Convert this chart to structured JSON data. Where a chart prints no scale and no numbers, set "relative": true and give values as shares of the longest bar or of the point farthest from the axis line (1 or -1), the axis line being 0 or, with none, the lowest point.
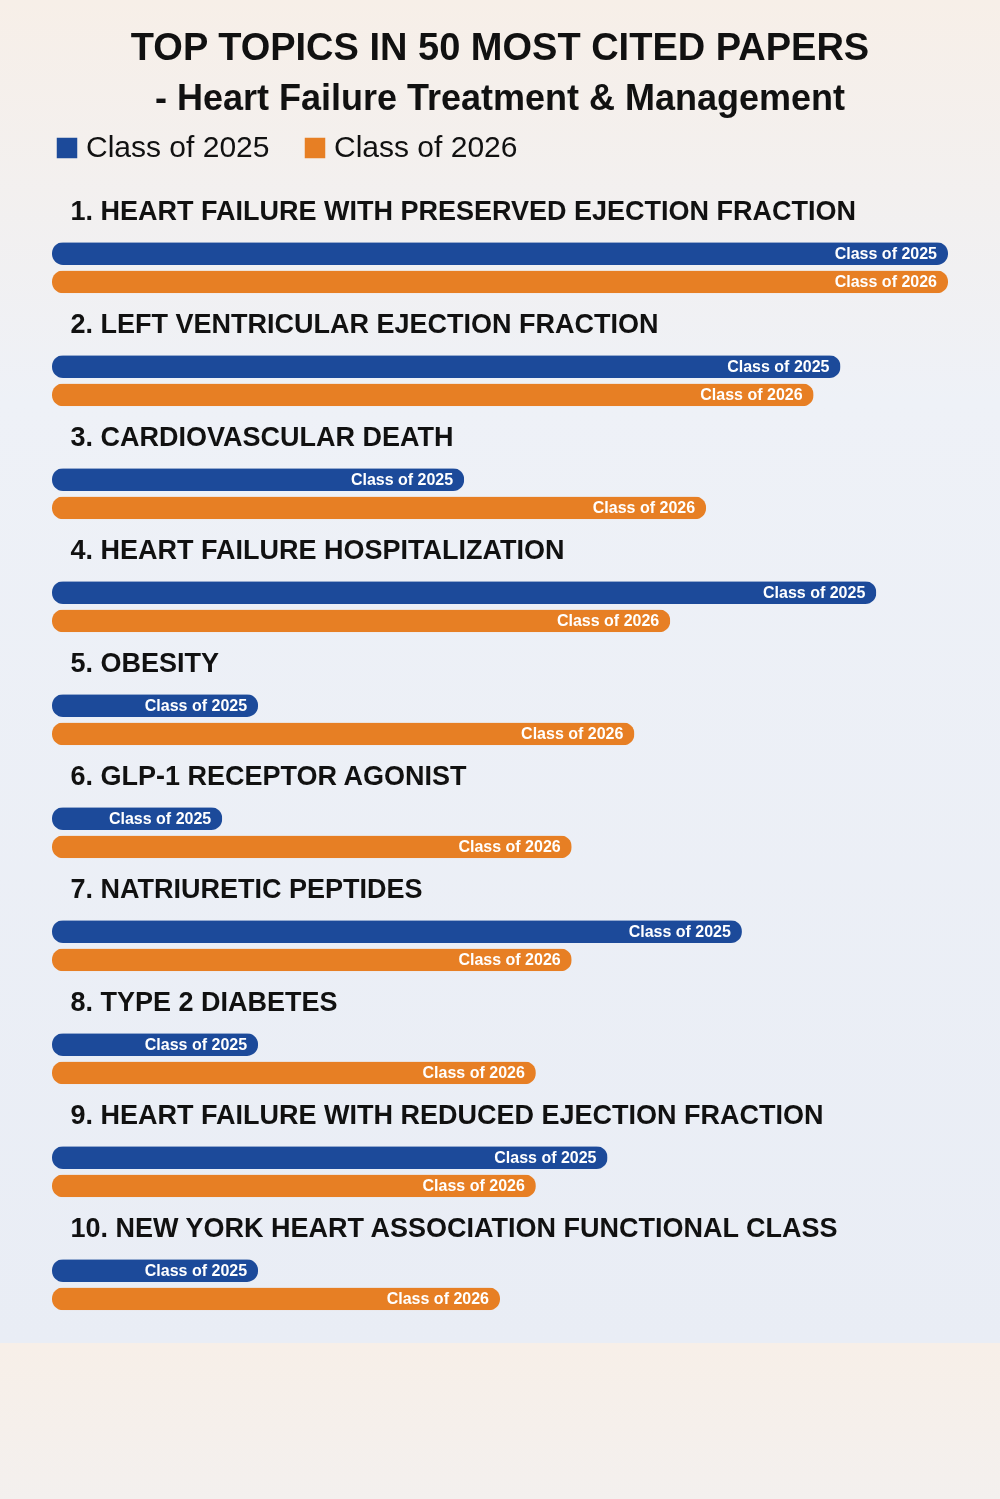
{
  "chart_data": {
    "type": "bar",
    "orientation": "horizontal",
    "relative": true,
    "title": "TOP TOPICS IN 50 MOST CITED PAPERS",
    "subtitle": "- Heart Failure Treatment & Management",
    "legend": "top",
    "categories": [
      "1. HEART FAILURE WITH PRESERVED EJECTION FRACTION",
      "2. LEFT VENTRICULAR EJECTION FRACTION",
      "3. CARDIOVASCULAR DEATH",
      "4. HEART FAILURE HOSPITALIZATION",
      "5. OBESITY",
      "6. GLP-1 RECEPTOR AGONIST",
      "7. NATRIURETIC PEPTIDES",
      "8. TYPE 2 DIABETES",
      "9. HEART FAILURE WITH REDUCED EJECTION FRACTION",
      "10. NEW YORK HEART ASSOCIATION FUNCTIONAL CLASS"
    ],
    "series": [
      {
        "name": "Class of 2025",
        "color": "#1c4a9a",
        "values": [
          1,
          0.88,
          0.46,
          0.92,
          0.23,
          0.19,
          0.77,
          0.23,
          0.62,
          0.23
        ]
      },
      {
        "name": "Class of 2026",
        "color": "#e77f24",
        "values": [
          1,
          0.85,
          0.73,
          0.69,
          0.65,
          0.58,
          0.58,
          0.54,
          0.54,
          0.5
        ]
      }
    ]
  }
}
